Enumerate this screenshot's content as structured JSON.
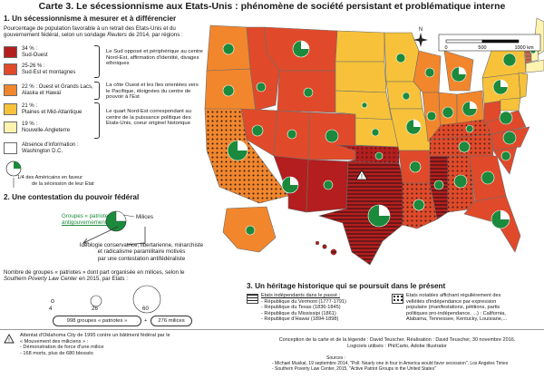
{
  "title": "Carte 3. Le sécessionnisme aux Etats-Unis : phénomène de société persistant et problématique interne",
  "section1": {
    "heading": "1. Un sécessionnisme à mesurer et à différencier",
    "intro_line1": "Pourcentage de population favorable à un retrait des Etats-Unis et du",
    "intro_line2": "gouvernement fédéral, selon un sondage",
    "intro_source": "Reuters",
    "intro_line2_end": "de 2014, par régions :",
    "legend": [
      {
        "pct": "34 % :",
        "region": "Sud-Ouest",
        "color": "#b41e1e"
      },
      {
        "pct": "25-26 % :",
        "region": "Sud-Est et montagnes",
        "color": "#e04a2a"
      },
      {
        "pct": "22 % : Ouest et Grands Lacs,",
        "region": "Alaska et Hawaï",
        "color": "#f2862c"
      },
      {
        "pct": "21 % :",
        "region": "Plaines et Mid-Atlantique",
        "color": "#f7c23a"
      },
      {
        "pct": "19 % :",
        "region": "Nouvelle-Angleterre",
        "color": "#fff3b0"
      },
      {
        "pct": "Absence d'information :",
        "region": "Washington D.C.",
        "color": "#ffffff"
      }
    ],
    "notes": [
      "Le Sud opposé et périphérique au centre Nord-Est, affirmation d'identité, divages ethniques",
      "La côte Ouest et les îles orientées vers le Pacifique, éloignées du centre de pouvoir à l'Est",
      "Le quart Nord-Est correspondant au centre de la puissance politique des Etats-Unis, coeur originel historique"
    ],
    "quarter_line1": "1/4 des Américains en faveur",
    "quarter_line2": "de la sécession de leur Etat"
  },
  "section2": {
    "heading": "2. Une contestation du pouvoir fédéral",
    "groups_line1": "Groupes « patriotes »",
    "groups_line2": "antigouvernementaux",
    "milices": "Milices",
    "ideology": [
      "Idéologie conservatrice, libertarienne, minarchiste",
      "et radicalisme paramilitaire motivés",
      "par une contestation antifédéraliste"
    ],
    "count_line1": "Nombre de groupes « patriotes » dont part organisée en milices, selon le",
    "count_source": "Southern Poverty Law Center",
    "count_line2_end": "en 2015, par Etats :",
    "sizes": [
      "4",
      "26",
      "60"
    ],
    "total_groups": "998 groupes « patriotes »",
    "total_milices": "276 milices",
    "oklahoma": [
      "Attentat d'Oklahoma City de 1995 contre un bâtiment fédéral par le",
      "« Mouvement des miliciens » :",
      "- Démonstration de force d'une milice",
      "- 168 morts, plus de 680 blessés"
    ]
  },
  "section3": {
    "heading": "3. Un héritage historique qui se poursuit dans le présent",
    "indep_title": "Etats indépendants dans le passé :",
    "indep_items": [
      "- République du Vermont (1777-1791)",
      "- République du Texas (1836-1845)",
      "- République du Mississipi (1861)",
      "- République d'Hawaï (1894-1898)"
    ],
    "notable_lines": [
      "Etats notables affichant régulièrement des",
      "velléités d'indépendance par expression",
      "populaire (manifestations, pétitions, partis",
      "politiques pro-indépendance, ...) : California,",
      "Alabama, Tennessee, Kentucky, Louisiane,..."
    ]
  },
  "scale": {
    "labels": [
      "0",
      "500",
      "1000 km"
    ]
  },
  "compass": {
    "n": "N"
  },
  "credits": {
    "line1": "Conception de la carte et de la légende : David Teuscher. Réalisation : David Teuscher, 30 novembre 2016.",
    "line2": "Logiciels utilisés : PhilCarto, Adobe Illustrator",
    "sources_head": "Sources :",
    "source1": "- Michael Muskal, 19 septembre 2014, \"Poll: Nearly one in four in America would favor secession\", Los Angeles Times",
    "source2": "- Southern Poverty Law Center, 2015, \"Active Patriot Groups in the United States\""
  }
}
